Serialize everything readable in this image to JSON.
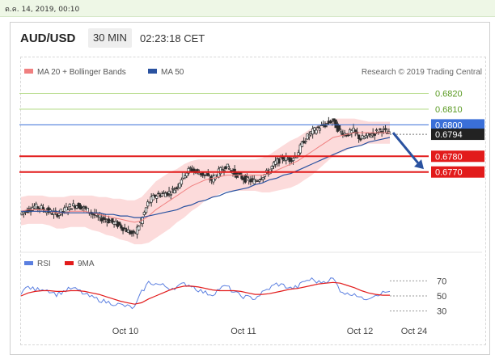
{
  "header": {
    "date": "ต.ค. 14, 2019, 00:10",
    "pair": "AUD/USD",
    "timeframe": "30 MIN",
    "time": "02:23:18 CET"
  },
  "chart_data": [
    {
      "type": "line",
      "legend": [
        "MA 20 + Bollinger Bands",
        "MA 50"
      ],
      "legend_colors": [
        "#f08080",
        "#2a52a0"
      ],
      "attribution": "Research © 2019 Trading Central",
      "x_ticks": [
        "Oct 10",
        "Oct 11",
        "Oct 12",
        "Oct 24"
      ],
      "levels": [
        {
          "label": "0.6820",
          "value": 0.682,
          "kind": "resistance",
          "color": "#b6db8a"
        },
        {
          "label": "0.6810",
          "value": 0.681,
          "kind": "resistance",
          "color": "#b6db8a"
        },
        {
          "label": "0.6800",
          "value": 0.68,
          "kind": "pivot",
          "color": "#3a6fd8"
        },
        {
          "label": "0.6794",
          "value": 0.6794,
          "kind": "last",
          "color": "#222222"
        },
        {
          "label": "0.6780",
          "value": 0.678,
          "kind": "support",
          "color": "#e21b1b"
        },
        {
          "label": "0.6770",
          "value": 0.677,
          "kind": "support",
          "color": "#e21b1b"
        }
      ],
      "close_path": [
        0.6743,
        0.6746,
        0.6748,
        0.6747,
        0.6745,
        0.6743,
        0.6745,
        0.6748,
        0.6749,
        0.6747,
        0.6744,
        0.6741,
        0.674,
        0.6738,
        0.6736,
        0.6733,
        0.673,
        0.6738,
        0.675,
        0.6755,
        0.6756,
        0.6757,
        0.676,
        0.6768,
        0.6772,
        0.677,
        0.6768,
        0.6765,
        0.677,
        0.6774,
        0.677,
        0.6767,
        0.6765,
        0.6764,
        0.6767,
        0.677,
        0.6776,
        0.6779,
        0.6778,
        0.6781,
        0.679,
        0.6795,
        0.6798,
        0.68,
        0.6803,
        0.6796,
        0.6794,
        0.6796,
        0.6791,
        0.6793,
        0.6795,
        0.6797,
        0.6794
      ],
      "ma20": [
        0.6745,
        0.6746,
        0.6746,
        0.6746,
        0.6745,
        0.6744,
        0.6744,
        0.6745,
        0.6745,
        0.6745,
        0.6744,
        0.6743,
        0.6742,
        0.6741,
        0.674,
        0.6739,
        0.6738,
        0.6739,
        0.6742,
        0.6746,
        0.6749,
        0.6752,
        0.6755,
        0.6758,
        0.6761,
        0.6763,
        0.6765,
        0.6766,
        0.6767,
        0.6768,
        0.6768,
        0.6768,
        0.6768,
        0.6768,
        0.6768,
        0.6769,
        0.6771,
        0.6773,
        0.6775,
        0.6777,
        0.678,
        0.6783,
        0.6786,
        0.6789,
        0.6792,
        0.6793,
        0.6794,
        0.6795,
        0.6795,
        0.6795,
        0.6795,
        0.6795,
        0.6795
      ],
      "ma50": [
        0.6745,
        0.6745,
        0.6745,
        0.6745,
        0.6745,
        0.6745,
        0.6744,
        0.6744,
        0.6744,
        0.6744,
        0.6744,
        0.6744,
        0.6743,
        0.6743,
        0.6742,
        0.6742,
        0.6741,
        0.6741,
        0.6742,
        0.6743,
        0.6744,
        0.6745,
        0.6746,
        0.6748,
        0.6749,
        0.6751,
        0.6752,
        0.6754,
        0.6755,
        0.6757,
        0.6758,
        0.6759,
        0.676,
        0.6762,
        0.6763,
        0.6765,
        0.6766,
        0.6768,
        0.6769,
        0.6771,
        0.6773,
        0.6775,
        0.6777,
        0.6779,
        0.6781,
        0.6783,
        0.6785,
        0.6786,
        0.6787,
        0.6789,
        0.679,
        0.6791,
        0.6792
      ],
      "band_width": [
        0.0009,
        0.0009,
        0.0009,
        0.0009,
        0.0009,
        0.001,
        0.001,
        0.001,
        0.001,
        0.001,
        0.0011,
        0.0011,
        0.0012,
        0.0012,
        0.0013,
        0.0013,
        0.0014,
        0.0015,
        0.0017,
        0.0018,
        0.0018,
        0.0018,
        0.0017,
        0.0017,
        0.0016,
        0.0015,
        0.0013,
        0.0012,
        0.0011,
        0.001,
        0.001,
        0.001,
        0.001,
        0.001,
        0.0011,
        0.0012,
        0.0013,
        0.0014,
        0.0015,
        0.0015,
        0.0015,
        0.0015,
        0.0014,
        0.0013,
        0.0012,
        0.0011,
        0.001,
        0.0009,
        0.0008,
        0.0007,
        0.0007,
        0.0007,
        0.0007
      ],
      "forecast": {
        "from": 0.6795,
        "to": 0.6778,
        "direction": "down"
      },
      "ylim": [
        0.6722,
        0.6828
      ]
    },
    {
      "type": "line",
      "legend": [
        "RSI",
        "9MA"
      ],
      "legend_colors": [
        "#5b7fe0",
        "#e21b1b"
      ],
      "y_ticks": [
        "70",
        "50",
        "30"
      ],
      "y_values": [
        70,
        50,
        30
      ],
      "ylim": [
        22,
        78
      ],
      "rsi": [
        55,
        62,
        58,
        60,
        57,
        52,
        56,
        60,
        58,
        52,
        48,
        45,
        42,
        40,
        38,
        36,
        34,
        55,
        68,
        66,
        64,
        60,
        62,
        66,
        64,
        58,
        54,
        52,
        60,
        63,
        55,
        50,
        48,
        47,
        54,
        60,
        66,
        64,
        60,
        62,
        70,
        72,
        68,
        70,
        73,
        58,
        52,
        54,
        46,
        48,
        52,
        54,
        56
      ],
      "ma9": [
        50,
        54,
        56,
        57,
        57,
        56,
        56,
        57,
        57,
        56,
        54,
        52,
        49,
        46,
        43,
        41,
        39,
        41,
        46,
        50,
        54,
        58,
        61,
        63,
        63,
        62,
        60,
        58,
        57,
        57,
        57,
        56,
        54,
        52,
        52,
        53,
        55,
        57,
        59,
        60,
        62,
        64,
        66,
        67,
        68,
        67,
        64,
        61,
        57,
        54,
        52,
        51,
        51
      ]
    }
  ]
}
